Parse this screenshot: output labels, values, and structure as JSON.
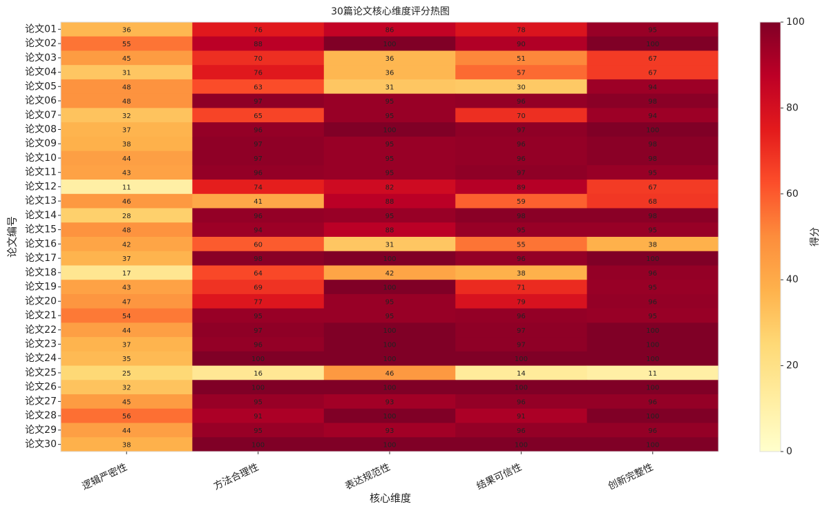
{
  "chart_data": {
    "type": "heatmap",
    "title": "30篇论文核心维度评分热图",
    "xlabel": "核心维度",
    "ylabel": "论文编号",
    "categories": [
      "逻辑严密性",
      "方法合理性",
      "表达规范性",
      "结果可信性",
      "创新完整性"
    ],
    "rows": [
      "论文01",
      "论文02",
      "论文03",
      "论文04",
      "论文05",
      "论文06",
      "论文07",
      "论文08",
      "论文09",
      "论文10",
      "论文11",
      "论文12",
      "论文13",
      "论文14",
      "论文15",
      "论文16",
      "论文17",
      "论文18",
      "论文19",
      "论文20",
      "论文21",
      "论文22",
      "论文23",
      "论文24",
      "论文25",
      "论文26",
      "论文27",
      "论文28",
      "论文29",
      "论文30"
    ],
    "values": [
      [
        36,
        76,
        86,
        78,
        95
      ],
      [
        55,
        88,
        100,
        90,
        100
      ],
      [
        45,
        70,
        36,
        51,
        67
      ],
      [
        31,
        76,
        36,
        57,
        67
      ],
      [
        48,
        63,
        31,
        30,
        94
      ],
      [
        48,
        97,
        95,
        96,
        98
      ],
      [
        32,
        65,
        95,
        70,
        94
      ],
      [
        37,
        96,
        100,
        97,
        100
      ],
      [
        38,
        97,
        95,
        96,
        98
      ],
      [
        44,
        97,
        95,
        96,
        98
      ],
      [
        43,
        96,
        95,
        97,
        95
      ],
      [
        11,
        74,
        82,
        89,
        67
      ],
      [
        46,
        41,
        88,
        59,
        68
      ],
      [
        28,
        96,
        95,
        98,
        98
      ],
      [
        48,
        94,
        88,
        95,
        95
      ],
      [
        42,
        60,
        31,
        55,
        38
      ],
      [
        37,
        98,
        100,
        96,
        100
      ],
      [
        17,
        64,
        42,
        38,
        96
      ],
      [
        43,
        69,
        100,
        71,
        95
      ],
      [
        47,
        77,
        95,
        79,
        96
      ],
      [
        54,
        95,
        95,
        96,
        95
      ],
      [
        44,
        97,
        100,
        97,
        100
      ],
      [
        37,
        96,
        100,
        97,
        100
      ],
      [
        35,
        100,
        100,
        100,
        100
      ],
      [
        25,
        16,
        46,
        14,
        11
      ],
      [
        32,
        100,
        100,
        100,
        100
      ],
      [
        45,
        95,
        93,
        96,
        96
      ],
      [
        56,
        91,
        100,
        91,
        100
      ],
      [
        44,
        95,
        93,
        96,
        96
      ],
      [
        38,
        100,
        100,
        100,
        100
      ]
    ],
    "colormap": [
      "#ffffcc",
      "#ffeda0",
      "#fed976",
      "#feb24c",
      "#fd8d3c",
      "#fc4e2a",
      "#e31a1c",
      "#bd0026",
      "#800026"
    ],
    "colorbar": {
      "label": "得分",
      "lim": [
        0,
        100
      ],
      "ticks": [
        0,
        20,
        40,
        60,
        80,
        100
      ]
    }
  }
}
